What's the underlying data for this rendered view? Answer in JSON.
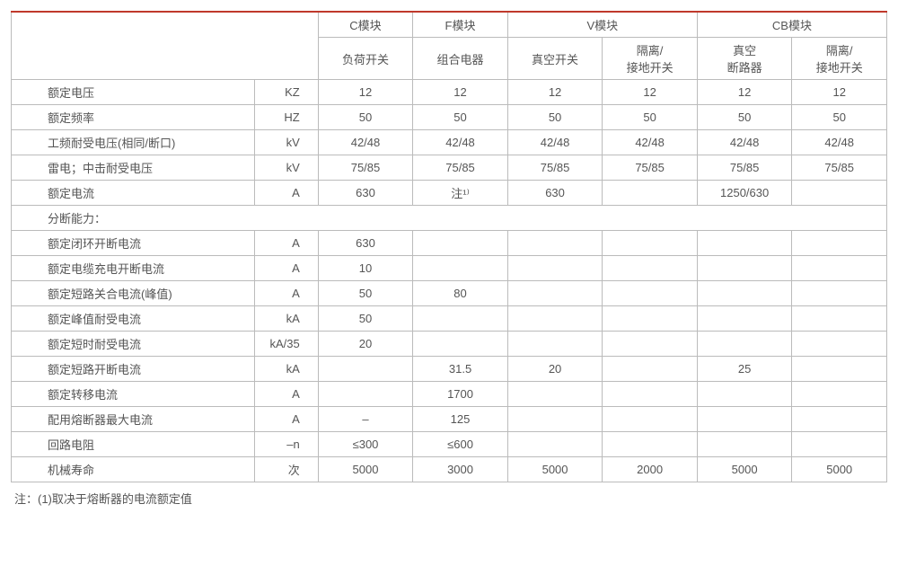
{
  "table": {
    "border_color": "#bbbbbb",
    "top_border_color": "#c0392b",
    "text_color": "#555555",
    "font_size_pt": 10,
    "header": {
      "groups": [
        "C模块",
        "F模块",
        "V模块",
        "CB模块"
      ],
      "subs": [
        "负荷开关",
        "组合电器",
        "真空开关",
        "隔离/\n接地开关",
        "真空\n断路器",
        "隔离/\n接地开关"
      ]
    },
    "rows": [
      {
        "param": "额定电压",
        "unit": "KZ",
        "vals": [
          "12",
          "12",
          "12",
          "12",
          "12",
          "12"
        ]
      },
      {
        "param": "额定频率",
        "unit": "HZ",
        "vals": [
          "50",
          "50",
          "50",
          "50",
          "50",
          "50"
        ]
      },
      {
        "param": "工频耐受电压(相同/断口)",
        "unit": "kV",
        "vals": [
          "42/48",
          "42/48",
          "42/48",
          "42/48",
          "42/48",
          "42/48"
        ]
      },
      {
        "param": "雷电；中击耐受电压",
        "unit": "kV",
        "vals": [
          "75/85",
          "75/85",
          "75/85",
          "75/85",
          "75/85",
          "75/85"
        ]
      },
      {
        "param": "额定电流",
        "unit": "A",
        "vals": [
          "630",
          "注¹⁾",
          "630",
          "",
          "1250/630",
          ""
        ]
      },
      {
        "section": "分断能力："
      },
      {
        "param": "额定闭环开断电流",
        "unit": "A",
        "vals": [
          "630",
          "",
          "",
          "",
          "",
          ""
        ]
      },
      {
        "param": "额定电缆充电开断电流",
        "unit": "A",
        "vals": [
          "10",
          "",
          "",
          "",
          "",
          ""
        ]
      },
      {
        "param": "额定短路关合电流(峰值)",
        "unit": "A",
        "vals": [
          "50",
          "80",
          "",
          "",
          "",
          ""
        ]
      },
      {
        "param": "额定峰值耐受电流",
        "unit": "kA",
        "vals": [
          "50",
          "",
          "",
          "",
          "",
          ""
        ]
      },
      {
        "param": "额定短时耐受电流",
        "unit": "kA/35",
        "vals": [
          "20",
          "",
          "",
          "",
          "",
          ""
        ]
      },
      {
        "param": "额定短路开断电流",
        "unit": "kA",
        "vals": [
          "",
          "31.5",
          "20",
          "",
          "25",
          ""
        ]
      },
      {
        "param": "额定转移电流",
        "unit": "A",
        "vals": [
          "",
          "1700",
          "",
          "",
          "",
          ""
        ]
      },
      {
        "param": "配用熔断器最大电流",
        "unit": "A",
        "vals": [
          "–",
          "125",
          "",
          "",
          "",
          ""
        ]
      },
      {
        "param": "回路电阻",
        "unit": "–n",
        "vals": [
          "≤300",
          "≤600",
          "",
          "",
          "",
          ""
        ]
      },
      {
        "param": "机械寿命",
        "unit": "次",
        "vals": [
          "5000",
          "3000",
          "5000",
          "2000",
          "5000",
          "5000"
        ]
      }
    ]
  },
  "footnote": "注：(1)取决于熔断器的电流额定值"
}
